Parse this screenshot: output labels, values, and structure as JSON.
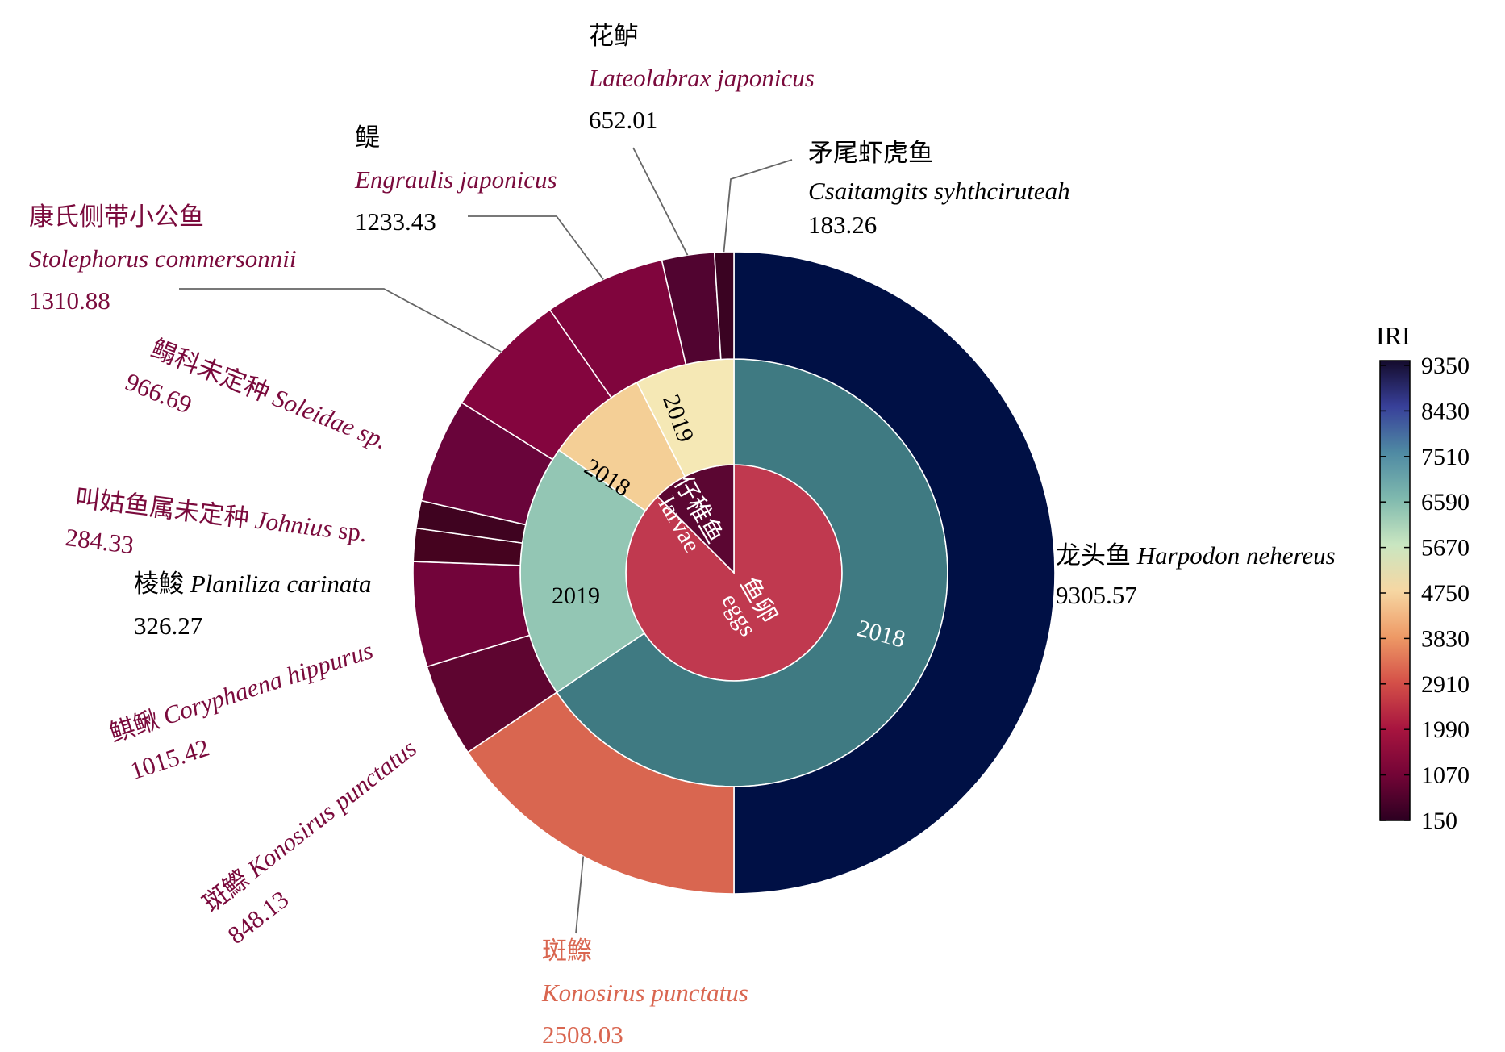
{
  "chart_data": {
    "type": "sunburst",
    "colorbar": {
      "title": "IRI",
      "ticks": [
        "9350",
        "8430",
        "7510",
        "6590",
        "5670",
        "4750",
        "3830",
        "2910",
        "1990",
        "1070",
        "150"
      ]
    },
    "center": [
      {
        "name_cn": "鱼卵",
        "name_en": "eggs"
      },
      {
        "name_cn": "仔稚鱼",
        "name_en": "larvae"
      }
    ],
    "middle": [
      {
        "label": "2018",
        "parent": "eggs"
      },
      {
        "label": "2019",
        "parent": "eggs"
      },
      {
        "label": "2018",
        "parent": "larvae"
      },
      {
        "label": "2019",
        "parent": "larvae"
      }
    ],
    "species": [
      {
        "name_cn": "龙头鱼",
        "name_sp": "Harpodon nehereus",
        "iri": "9305.57"
      },
      {
        "name_cn": "斑鰶",
        "name_sp": "Konosirus punctatus",
        "iri": "2508.03"
      },
      {
        "name_cn": "斑鰶",
        "name_sp": "Konosirus punctatus",
        "iri": "848.13"
      },
      {
        "name_cn": "鲯鳅",
        "name_sp": "Coryphaena hippurus",
        "iri": "1015.42"
      },
      {
        "name_cn": "棱鮻",
        "name_sp": "Planiliza carinata",
        "iri": "326.27"
      },
      {
        "name_cn": "叫姑鱼属未定种",
        "name_sp": "Johnius",
        "name_sp_suffix": "sp.",
        "iri": "284.33"
      },
      {
        "name_cn": "鳎科未定种",
        "name_sp": "Soleidae sp.",
        "iri": "966.69"
      },
      {
        "name_cn": "康氏侧带小公鱼",
        "name_sp": "Stolephorus commersonnii",
        "iri": "1310.88"
      },
      {
        "name_cn": "鳀",
        "name_sp": "Engraulis japonicus",
        "iri": "1233.43"
      },
      {
        "name_cn": "花鲈",
        "name_sp": "Lateolabrax japonicus",
        "iri": "652.01"
      },
      {
        "name_cn": "矛尾虾虎鱼",
        "name_sp": "Csaitamgits syhthciruteah",
        "iri": "183.26"
      }
    ],
    "colors": {
      "center_eggs": "#c0394f",
      "center_larvae": "#5b0632",
      "mid_eggs_2018": "#3f7a82",
      "mid_eggs_2019": "#93c6b4",
      "mid_larvae_2018": "#f4cf96",
      "mid_larvae_2019": "#f5e8b5",
      "harpodon": "#001045",
      "konosirus_eggs": "#d96650",
      "konosirus_larvae": "#5e0530",
      "coryphaena": "#72043a",
      "planiliza": "#45031f",
      "johnius": "#3f0320",
      "soleidae": "#69043a",
      "stolephorus": "#84053e",
      "engraulis": "#80053d",
      "lateolabrax": "#510430",
      "csaitamgits": "#3a0322",
      "label_dark": "#000000",
      "label_wine": "#7a0a3c",
      "label_coral": "#d96650"
    }
  }
}
